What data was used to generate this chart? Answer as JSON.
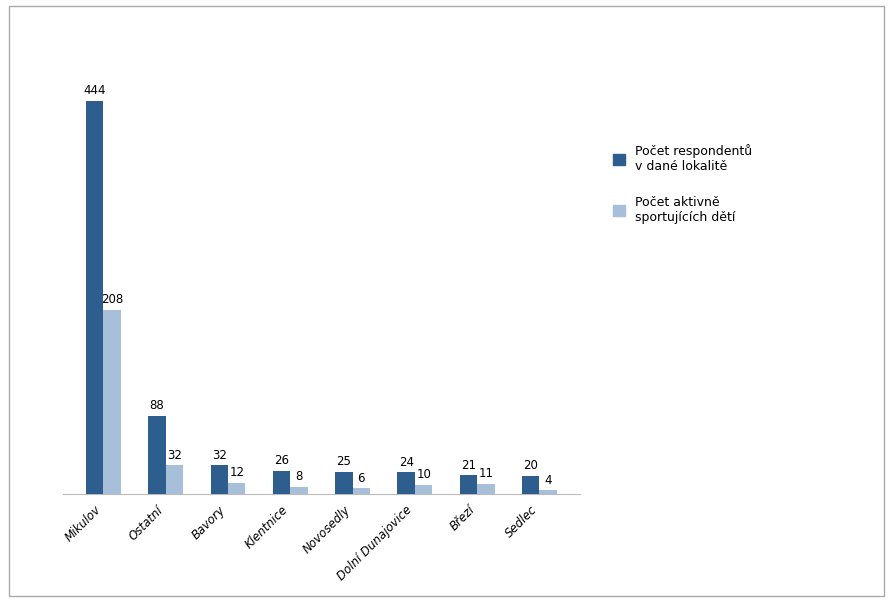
{
  "categories": [
    "Mikulov",
    "Ostatní",
    "Bavory",
    "Klentnice",
    "Novosedly",
    "Dolní Dunajovice",
    "Březí",
    "Sedlec"
  ],
  "respondents": [
    444,
    88,
    32,
    26,
    25,
    24,
    21,
    20
  ],
  "active_sports": [
    208,
    32,
    12,
    8,
    6,
    10,
    11,
    4
  ],
  "bar_color_dark": "#2E5E8E",
  "bar_color_light": "#A8BFDA",
  "legend_label_dark": "Počet respondentů\nv dané lokalitě",
  "legend_label_light": "Počet aktivně\nsportujících dětí",
  "background_color": "#FFFFFF",
  "border_color": "#AAAAAA",
  "label_fontsize": 8.5,
  "tick_fontsize": 8.5,
  "legend_fontsize": 9,
  "bar_width": 0.28,
  "ylim": [
    0,
    490
  ],
  "fig_width": 8.93,
  "fig_height": 6.02,
  "dpi": 100
}
